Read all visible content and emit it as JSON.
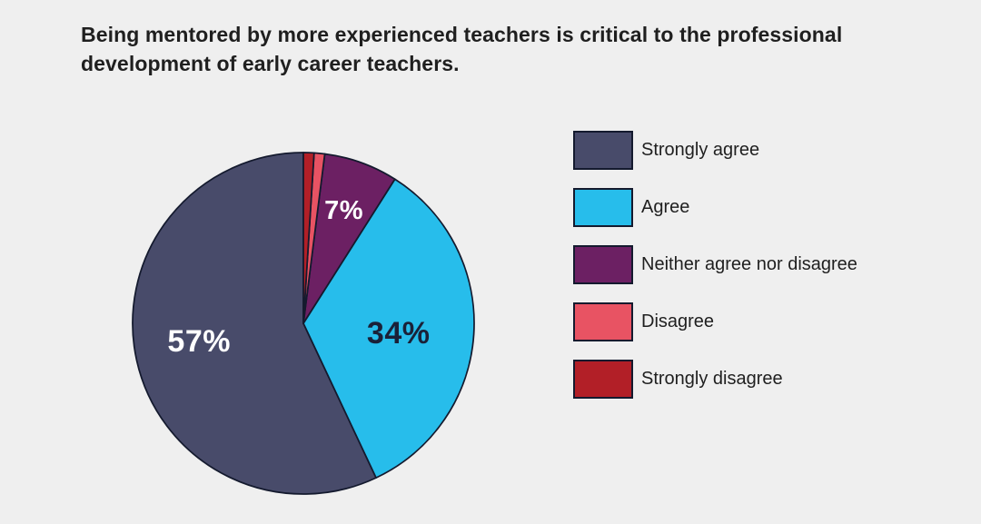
{
  "page": {
    "background_color": "#EFEFEF"
  },
  "title": {
    "text": "Being mentored by more experienced teachers is critical to the professional development of early career teachers."
  },
  "chart_data": {
    "type": "pie",
    "title": "Being mentored by more experienced teachers is critical to the professional development of early career teachers.",
    "start_angle_deg": 90,
    "direction": "counterclockwise",
    "stroke_color": "#141A2E",
    "legend_position": "right",
    "slices": [
      {
        "label": "Strongly agree",
        "value": 57,
        "display": "57%",
        "color": "#484B6A",
        "label_color": "#FFFFFF"
      },
      {
        "label": "Agree",
        "value": 34,
        "display": "34%",
        "color": "#27BDEB",
        "label_color": "#1A2138"
      },
      {
        "label": "Neither agree nor disagree",
        "value": 7,
        "display": "7%",
        "color": "#6C2063",
        "label_color": "#FFFFFF"
      },
      {
        "label": "Disagree",
        "value": 1,
        "display": "",
        "color": "#E85363",
        "label_color": ""
      },
      {
        "label": "Strongly disagree",
        "value": 1,
        "display": "",
        "color": "#B21F27",
        "label_color": ""
      }
    ]
  }
}
